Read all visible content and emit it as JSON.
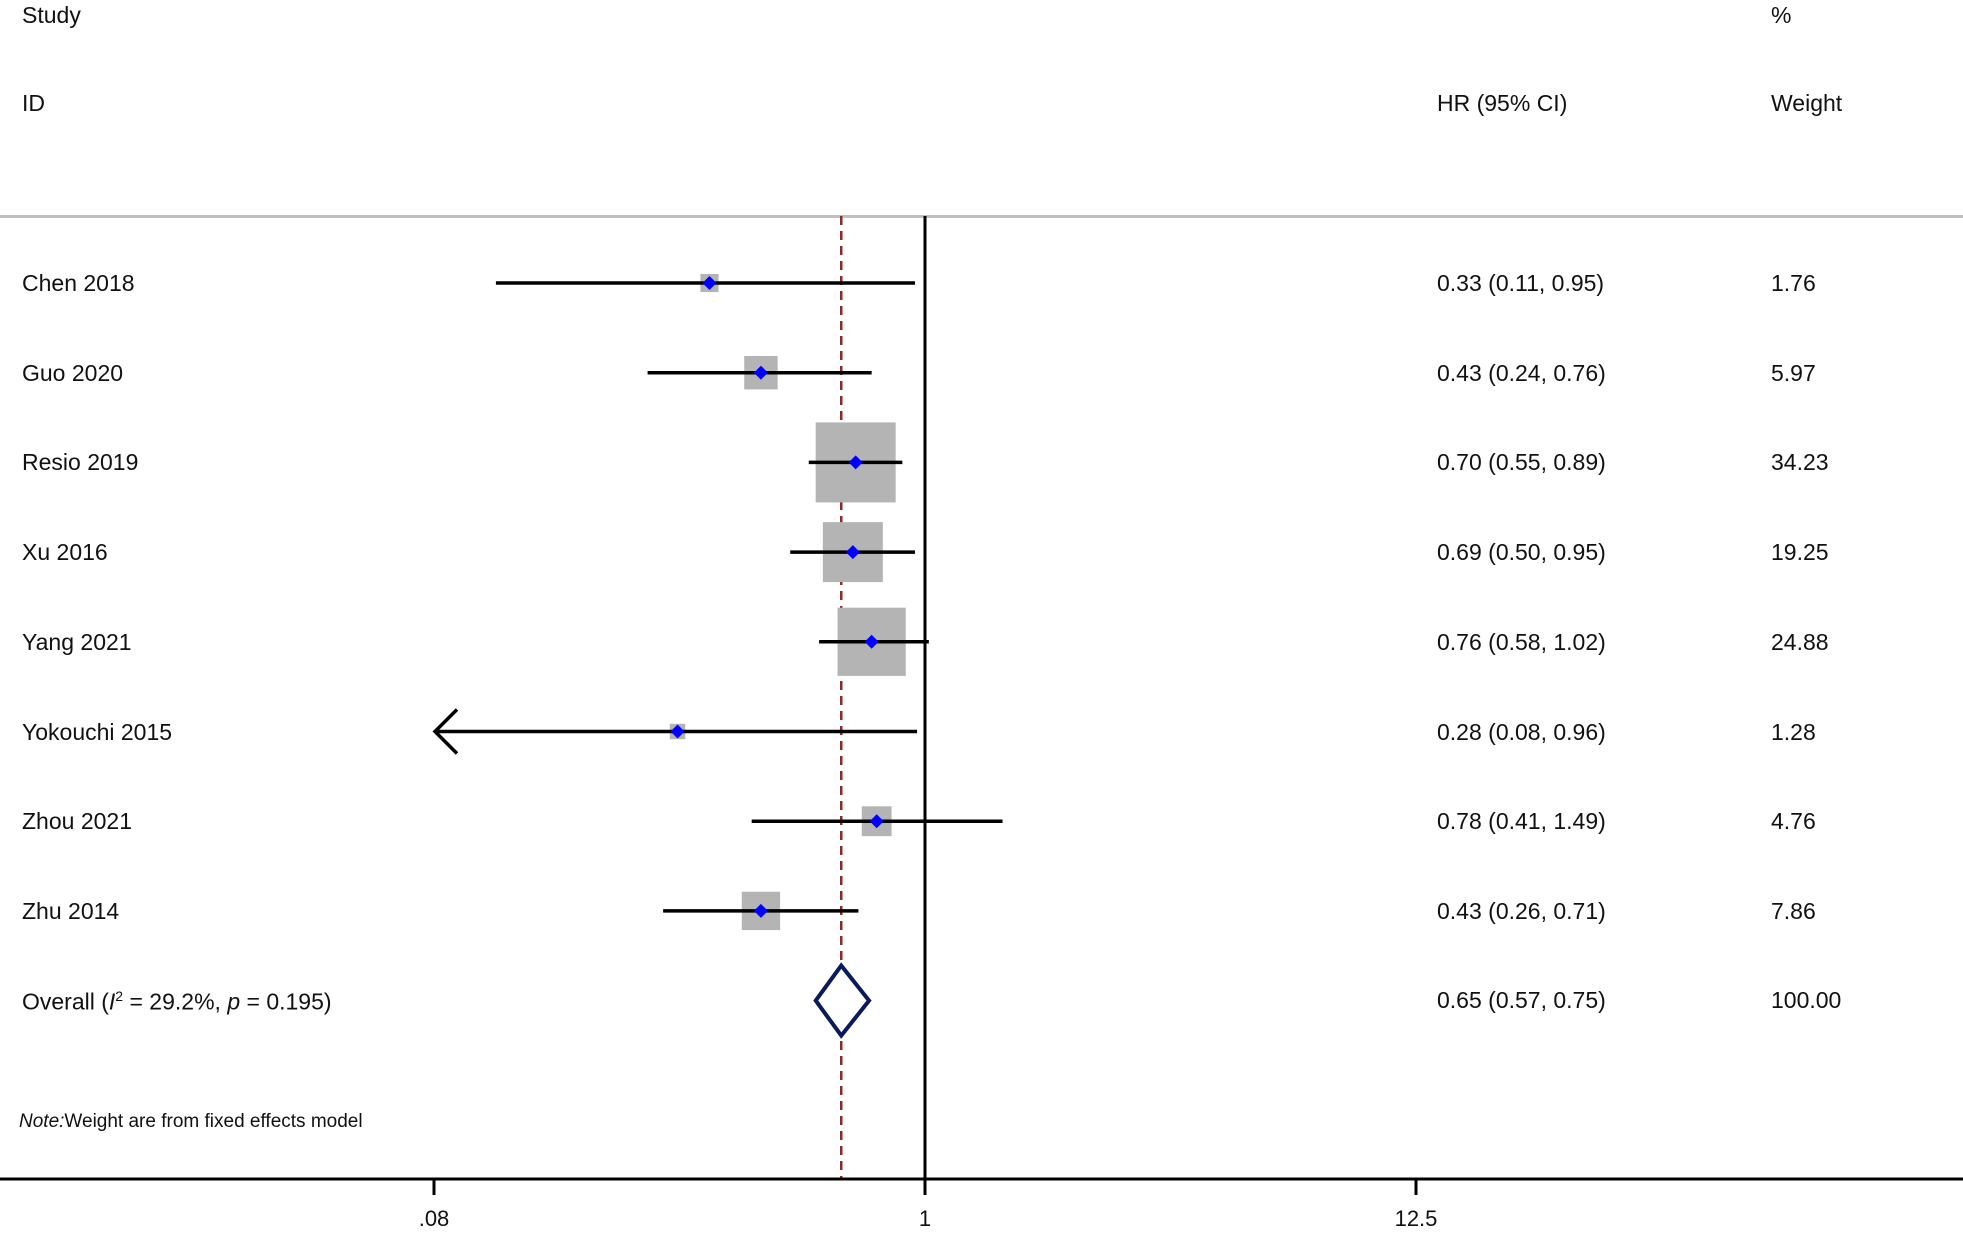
{
  "headers": {
    "study_line1": "Study",
    "study_line2": "ID",
    "hr": "HR (95% CI)",
    "weight_line1": "%",
    "weight_line2": "Weight"
  },
  "note": {
    "prefix": "Note:",
    "text": "Weight are from fixed effects model"
  },
  "overall": {
    "label_prefix": "Overall  (",
    "i2_symbol": "I",
    "i2_sup": "2",
    "i2_text": " = 29.2%, ",
    "p_symbol": "p",
    "p_text": " = 0.195)",
    "hr_text": "0.65 (0.57, 0.75)",
    "weight_text": "100.00",
    "hr": 0.65,
    "lo": 0.57,
    "hi": 0.75
  },
  "chart_data": {
    "type": "scatter",
    "x_scale": "log",
    "x_ticks": [
      0.08,
      1,
      12.5
    ],
    "x_tick_labels": [
      ".08",
      "1",
      "12.5"
    ],
    "null_line": 1,
    "pooled_line": 0.65,
    "studies": [
      {
        "id": "Chen 2018",
        "hr": 0.33,
        "lo": 0.11,
        "hi": 0.95,
        "hr_text": "0.33 (0.11, 0.95)",
        "weight": 1.76,
        "weight_text": "1.76"
      },
      {
        "id": "Guo 2020",
        "hr": 0.43,
        "lo": 0.24,
        "hi": 0.76,
        "hr_text": "0.43 (0.24, 0.76)",
        "weight": 5.97,
        "weight_text": "5.97"
      },
      {
        "id": "Resio 2019",
        "hr": 0.7,
        "lo": 0.55,
        "hi": 0.89,
        "hr_text": "0.70 (0.55, 0.89)",
        "weight": 34.23,
        "weight_text": "34.23"
      },
      {
        "id": "Xu 2016",
        "hr": 0.69,
        "lo": 0.5,
        "hi": 0.95,
        "hr_text": "0.69 (0.50, 0.95)",
        "weight": 19.25,
        "weight_text": "19.25"
      },
      {
        "id": "Yang 2021",
        "hr": 0.76,
        "lo": 0.58,
        "hi": 1.02,
        "hr_text": "0.76 (0.58, 1.02)",
        "weight": 24.88,
        "weight_text": "24.88"
      },
      {
        "id": "Yokouchi 2015",
        "hr": 0.28,
        "lo": 0.08,
        "hi": 0.96,
        "hr_text": "0.28 (0.08, 0.96)",
        "weight": 1.28,
        "weight_text": "1.28",
        "lower_truncated": true
      },
      {
        "id": "Zhou 2021",
        "hr": 0.78,
        "lo": 0.41,
        "hi": 1.49,
        "hr_text": "0.78 (0.41, 1.49)",
        "weight": 4.76,
        "weight_text": "4.76"
      },
      {
        "id": "Zhu 2014",
        "hr": 0.43,
        "lo": 0.26,
        "hi": 0.71,
        "hr_text": "0.43 (0.26, 0.71)",
        "weight": 7.86,
        "weight_text": "7.86"
      }
    ],
    "colors": {
      "point": "#0000ff",
      "box": "#b4b4b4",
      "ci_line": "#000000",
      "pooled_line": "#8b2a2a",
      "diamond": "#0a1a5c"
    }
  }
}
